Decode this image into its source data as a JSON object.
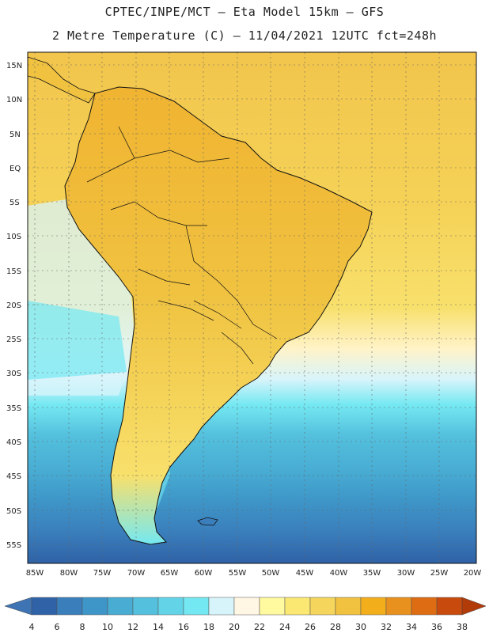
{
  "title_line1": "CPTEC/INPE/MCT –  Eta Model 15km – GFS",
  "title_line2": "2 Metre Temperature (C) – 11/04/2021 12UTC fct=248h",
  "lat_labels": [
    "15N",
    "10N",
    "5N",
    "EQ",
    "5S",
    "10S",
    "15S",
    "20S",
    "25S",
    "30S",
    "35S",
    "40S",
    "45S",
    "50S",
    "55S"
  ],
  "lon_labels": [
    "85W",
    "80W",
    "75W",
    "70W",
    "65W",
    "60W",
    "55W",
    "50W",
    "45W",
    "40W",
    "35W",
    "30W",
    "25W",
    "20W"
  ],
  "colorbar": {
    "ticks": [
      "4",
      "6",
      "8",
      "10",
      "12",
      "14",
      "16",
      "18",
      "20",
      "22",
      "24",
      "26",
      "28",
      "30",
      "32",
      "34",
      "36",
      "38"
    ],
    "colors": [
      "#2f62a6",
      "#3a7ebc",
      "#3e95c7",
      "#48acd3",
      "#54c0dd",
      "#63d4e8",
      "#74e8f2",
      "#d8f4fb",
      "#fff7e4",
      "#fffaa0",
      "#fbe873",
      "#f5d55b",
      "#f0c240",
      "#f2ae1b",
      "#e9911e",
      "#dd6c13",
      "#c84a0c"
    ],
    "low_arrow": "#3f74b4",
    "high_arrow": "#b23b0a"
  }
}
